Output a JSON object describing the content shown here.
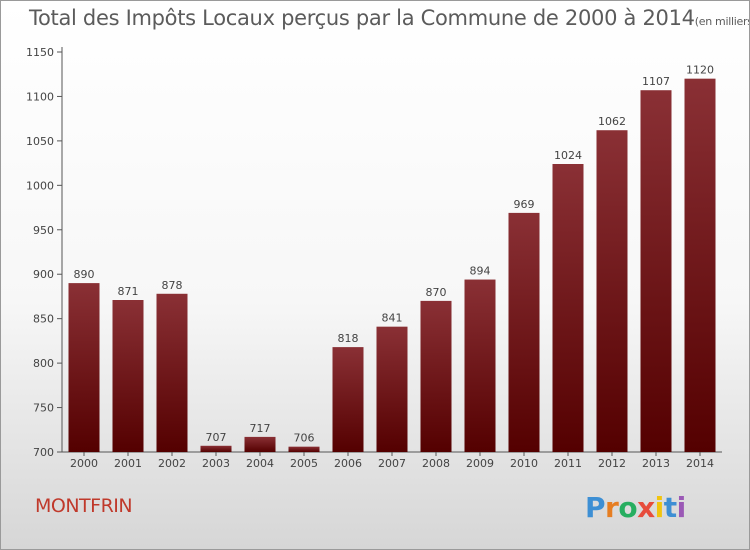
{
  "title": "Total des Impôts Locaux perçus par la Commune de 2000 à 2014",
  "title_unit": "(en milliers d'€)",
  "commune": "MONTFRIN",
  "brand": "Proxiti",
  "colors": {
    "bar_light": "#8a3035",
    "bar_dark": "#540000",
    "axis": "#555555"
  },
  "chart_data": {
    "type": "bar",
    "title": "Total des Impôts Locaux perçus par la Commune de 2000 à 2014",
    "xlabel": "",
    "ylabel": "(en milliers d'€)",
    "categories": [
      "2000",
      "2001",
      "2002",
      "2003",
      "2004",
      "2005",
      "2006",
      "2007",
      "2008",
      "2009",
      "2010",
      "2011",
      "2012",
      "2013",
      "2014"
    ],
    "values": [
      890,
      871,
      878,
      707,
      717,
      706,
      818,
      841,
      870,
      894,
      969,
      1024,
      1062,
      1107,
      1120
    ],
    "ylim": [
      700,
      1150
    ],
    "yticks": [
      700,
      750,
      800,
      850,
      900,
      950,
      1000,
      1050,
      1100,
      1150
    ],
    "grid": false,
    "legend": "none"
  }
}
